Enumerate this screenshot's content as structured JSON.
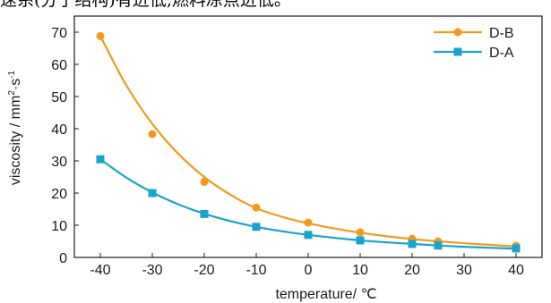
{
  "header": {
    "text": "速系(分子结构)有进低,燃料凉点进低。"
  },
  "chart_data": {
    "type": "line",
    "title": "",
    "xlabel": "temperature/ ℃",
    "ylabel_main": "viscosity / mm",
    "ylabel_sup1": "2",
    "ylabel_mid": "·s",
    "ylabel_sup2": "-1",
    "xlim": [
      -45,
      45
    ],
    "ylim": [
      0,
      75
    ],
    "xticks": [
      -40,
      -30,
      -20,
      -10,
      0,
      10,
      20,
      30,
      40
    ],
    "xtick_labels": [
      "-40",
      "-30",
      "-20",
      "-10",
      "0",
      "10",
      "20",
      "30",
      "40"
    ],
    "yticks": [
      0,
      10,
      20,
      30,
      40,
      50,
      60,
      70
    ],
    "ytick_labels": [
      "0",
      "10",
      "20",
      "30",
      "40",
      "50",
      "60",
      "70"
    ],
    "grid": false,
    "legend_position": "top-right",
    "series": [
      {
        "name": "D-B",
        "color": "#f39a1e",
        "marker": "circle",
        "x": [
          -40,
          -30,
          -20,
          -10,
          0,
          10,
          20,
          25,
          40
        ],
        "y": [
          68.8,
          38.3,
          23.5,
          15.5,
          10.8,
          7.8,
          5.8,
          5.0,
          3.6
        ],
        "curve_x": [
          -40,
          -35,
          -30,
          -25,
          -20,
          -15,
          -10,
          -5,
          0,
          5,
          10,
          15,
          20,
          25,
          30,
          35,
          40
        ],
        "curve_y": [
          68.8,
          53.5,
          41.5,
          32.2,
          25.0,
          19.5,
          15.3,
          12.6,
          10.6,
          9.0,
          7.7,
          6.6,
          5.7,
          5.0,
          4.4,
          3.9,
          3.4
        ]
      },
      {
        "name": "D-A",
        "color": "#1aa3cc",
        "marker": "square",
        "x": [
          -40,
          -30,
          -20,
          -10,
          0,
          10,
          20,
          25,
          40
        ],
        "y": [
          30.5,
          20.0,
          13.5,
          9.5,
          7.0,
          5.3,
          4.2,
          3.7,
          2.8
        ],
        "curve_x": [
          -40,
          -35,
          -30,
          -25,
          -20,
          -15,
          -10,
          -5,
          0,
          5,
          10,
          15,
          20,
          25,
          30,
          35,
          40
        ],
        "curve_y": [
          30.5,
          24.8,
          20.2,
          16.5,
          13.6,
          11.3,
          9.5,
          8.1,
          7.0,
          6.1,
          5.3,
          4.7,
          4.2,
          3.7,
          3.3,
          3.0,
          2.7
        ]
      }
    ]
  }
}
